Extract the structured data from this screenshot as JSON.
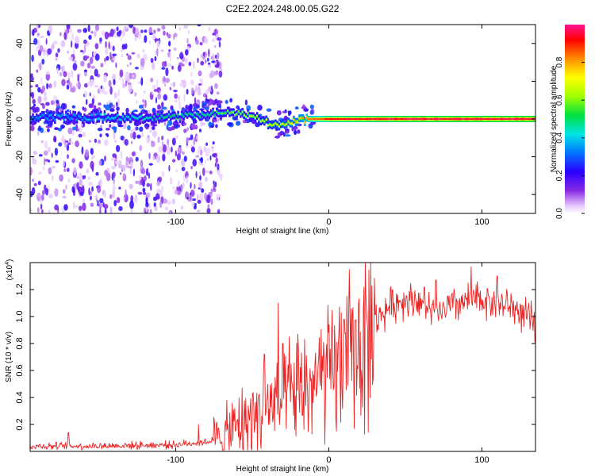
{
  "title": "C2E2.2024.248.00.05.G22",
  "colors": {
    "snr_line": "#ee2222",
    "axis": "#000000",
    "background": "#ffffff"
  },
  "chart_data": [
    {
      "type": "heatmap",
      "name": "spectrogram",
      "xlabel": "Height of straight line (km)",
      "ylabel": "Frequency (Hz)",
      "xlim": [
        -195,
        135
      ],
      "ylim": [
        -50,
        50
      ],
      "x_ticks": [
        -100,
        0,
        100
      ],
      "x_tick_labels": [
        "-100",
        "0",
        "100"
      ],
      "y_ticks": [
        -40,
        -20,
        0,
        20,
        40
      ],
      "y_tick_labels": [
        "-40",
        "-20",
        "0",
        "20",
        "40"
      ],
      "colorbar": {
        "label": "Normalized spectral amplitude",
        "range": [
          0,
          1
        ],
        "ticks": [
          0.0,
          0.2,
          0.4,
          0.6,
          0.8
        ],
        "tick_labels": [
          "0.0",
          "0.2",
          "0.4",
          "0.6",
          "0.8"
        ]
      },
      "ridge": {
        "description_points": [
          {
            "x": -170,
            "freq": 1,
            "amp": 0.35
          },
          {
            "x": -120,
            "freq": 1,
            "amp": 0.45
          },
          {
            "x": -100,
            "freq": 1,
            "amp": 0.5
          },
          {
            "x": -80,
            "freq": 3,
            "amp": 0.5
          },
          {
            "x": -65,
            "freq": 3,
            "amp": 0.6
          },
          {
            "x": -50,
            "freq": 2,
            "amp": 0.65
          },
          {
            "x": -40,
            "freq": -2,
            "amp": 0.7
          },
          {
            "x": -30,
            "freq": -3,
            "amp": 0.72
          },
          {
            "x": -20,
            "freq": -1,
            "amp": 0.78
          },
          {
            "x": -15,
            "freq": 0,
            "amp": 0.82
          },
          {
            "x": 0,
            "freq": 0,
            "amp": 0.92
          },
          {
            "x": 50,
            "freq": 0,
            "amp": 0.96
          },
          {
            "x": 100,
            "freq": 0,
            "amp": 0.97
          },
          {
            "x": 135,
            "freq": 0,
            "amp": 0.97
          }
        ],
        "noise_extent_x": [
          -195,
          -75
        ]
      }
    },
    {
      "type": "line",
      "name": "snr",
      "xlabel": "Height of straight line (km)",
      "ylabel": "SNR (10 * v/v)",
      "scale_label_base": "(x10",
      "scale_label_exp": "4",
      "scale_label_close": ")",
      "xlim": [
        -195,
        135
      ],
      "ylim": [
        0,
        1.4
      ],
      "x_ticks": [
        -100,
        0,
        100
      ],
      "x_tick_labels": [
        "-100",
        "0",
        "100"
      ],
      "y_ticks": [
        0.2,
        0.4,
        0.6,
        0.8,
        1.0,
        1.2
      ],
      "y_tick_labels": [
        "0.2",
        "0.4",
        "0.6",
        "0.8",
        "1.0",
        "1.2"
      ],
      "trend": {
        "x": [
          -195,
          -150,
          -100,
          -80,
          -70,
          -60,
          -50,
          -40,
          -30,
          -20,
          -10,
          0,
          10,
          20,
          30,
          40,
          50,
          60,
          70,
          80,
          90,
          100,
          110,
          120,
          135
        ],
        "y": [
          0.04,
          0.04,
          0.05,
          0.07,
          0.1,
          0.18,
          0.26,
          0.32,
          0.38,
          0.45,
          0.5,
          0.56,
          0.67,
          0.78,
          0.96,
          1.08,
          1.13,
          1.12,
          1.0,
          1.08,
          1.11,
          1.13,
          1.1,
          1.07,
          0.95
        ]
      },
      "spikes": [
        {
          "x": -170,
          "y": 0.14
        },
        {
          "x": -85,
          "y": 0.2
        },
        {
          "x": -42,
          "y": 0.72
        },
        {
          "x": -33,
          "y": 1.1
        },
        {
          "x": -30,
          "y": 0.8
        },
        {
          "x": 10,
          "y": 0.98
        },
        {
          "x": 17,
          "y": 0.97
        },
        {
          "x": 70,
          "y": 1.27
        },
        {
          "x": 93,
          "y": 1.37
        },
        {
          "x": 110,
          "y": 1.3
        }
      ]
    }
  ]
}
